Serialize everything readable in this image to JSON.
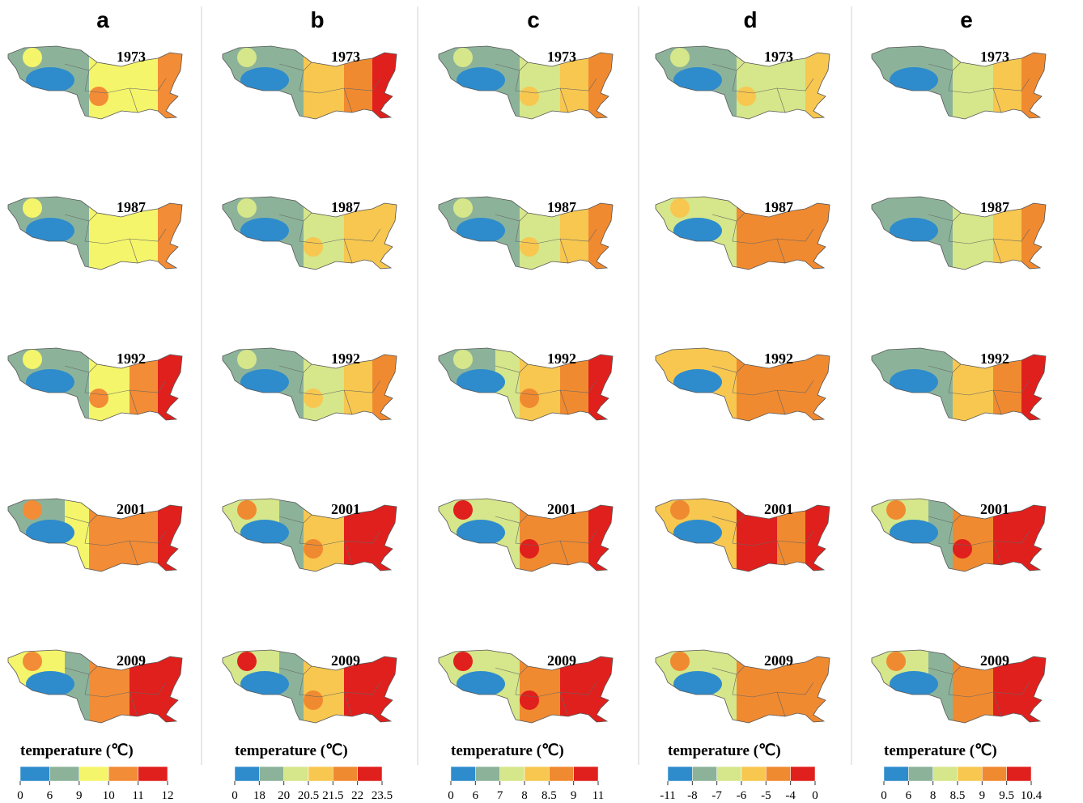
{
  "panels": [
    {
      "label": "a",
      "years": [
        1973,
        1987,
        1992,
        2001,
        2009
      ],
      "legend": {
        "title": "temperature (℃)",
        "ticks": [
          0,
          6,
          9,
          10,
          11,
          12
        ],
        "colors": [
          "#2e8ccc",
          "#8cb39a",
          "#f5f56b",
          "#f28c36",
          "#e0201d"
        ]
      }
    },
    {
      "label": "b",
      "years": [
        1973,
        1987,
        1992,
        2001,
        2009
      ],
      "legend": {
        "title": "temperature (℃)",
        "ticks": [
          0,
          18,
          20,
          20.5,
          21.5,
          22,
          23.5
        ],
        "colors": [
          "#2e8ccc",
          "#8cb39a",
          "#d6e68a",
          "#f7c750",
          "#f08a30",
          "#e0201d"
        ]
      }
    },
    {
      "label": "c",
      "years": [
        1973,
        1987,
        1992,
        2001,
        2009
      ],
      "legend": {
        "title": "temperature (℃)",
        "ticks": [
          0,
          6,
          7,
          8,
          8.5,
          9,
          11
        ],
        "colors": [
          "#2e8ccc",
          "#8cb39a",
          "#d6e68a",
          "#f7c750",
          "#f08a30",
          "#e0201d"
        ]
      }
    },
    {
      "label": "d",
      "years": [
        1973,
        1987,
        1992,
        2001,
        2009
      ],
      "legend": {
        "title": "temperature (℃)",
        "ticks": [
          -11,
          -8,
          -7,
          -6,
          -5,
          -4,
          0
        ],
        "colors": [
          "#2e8ccc",
          "#8cb39a",
          "#d6e68a",
          "#f7c750",
          "#f08a30",
          "#e0201d"
        ]
      }
    },
    {
      "label": "e",
      "years": [
        1973,
        1987,
        1992,
        2001,
        2009
      ],
      "legend": {
        "title": "temperature (℃)",
        "ticks": [
          0,
          6,
          8,
          8.5,
          9,
          9.5,
          10.4
        ],
        "colors": [
          "#2e8ccc",
          "#8cb39a",
          "#d6e68a",
          "#f7c750",
          "#f08a30",
          "#e0201d"
        ]
      }
    }
  ]
}
